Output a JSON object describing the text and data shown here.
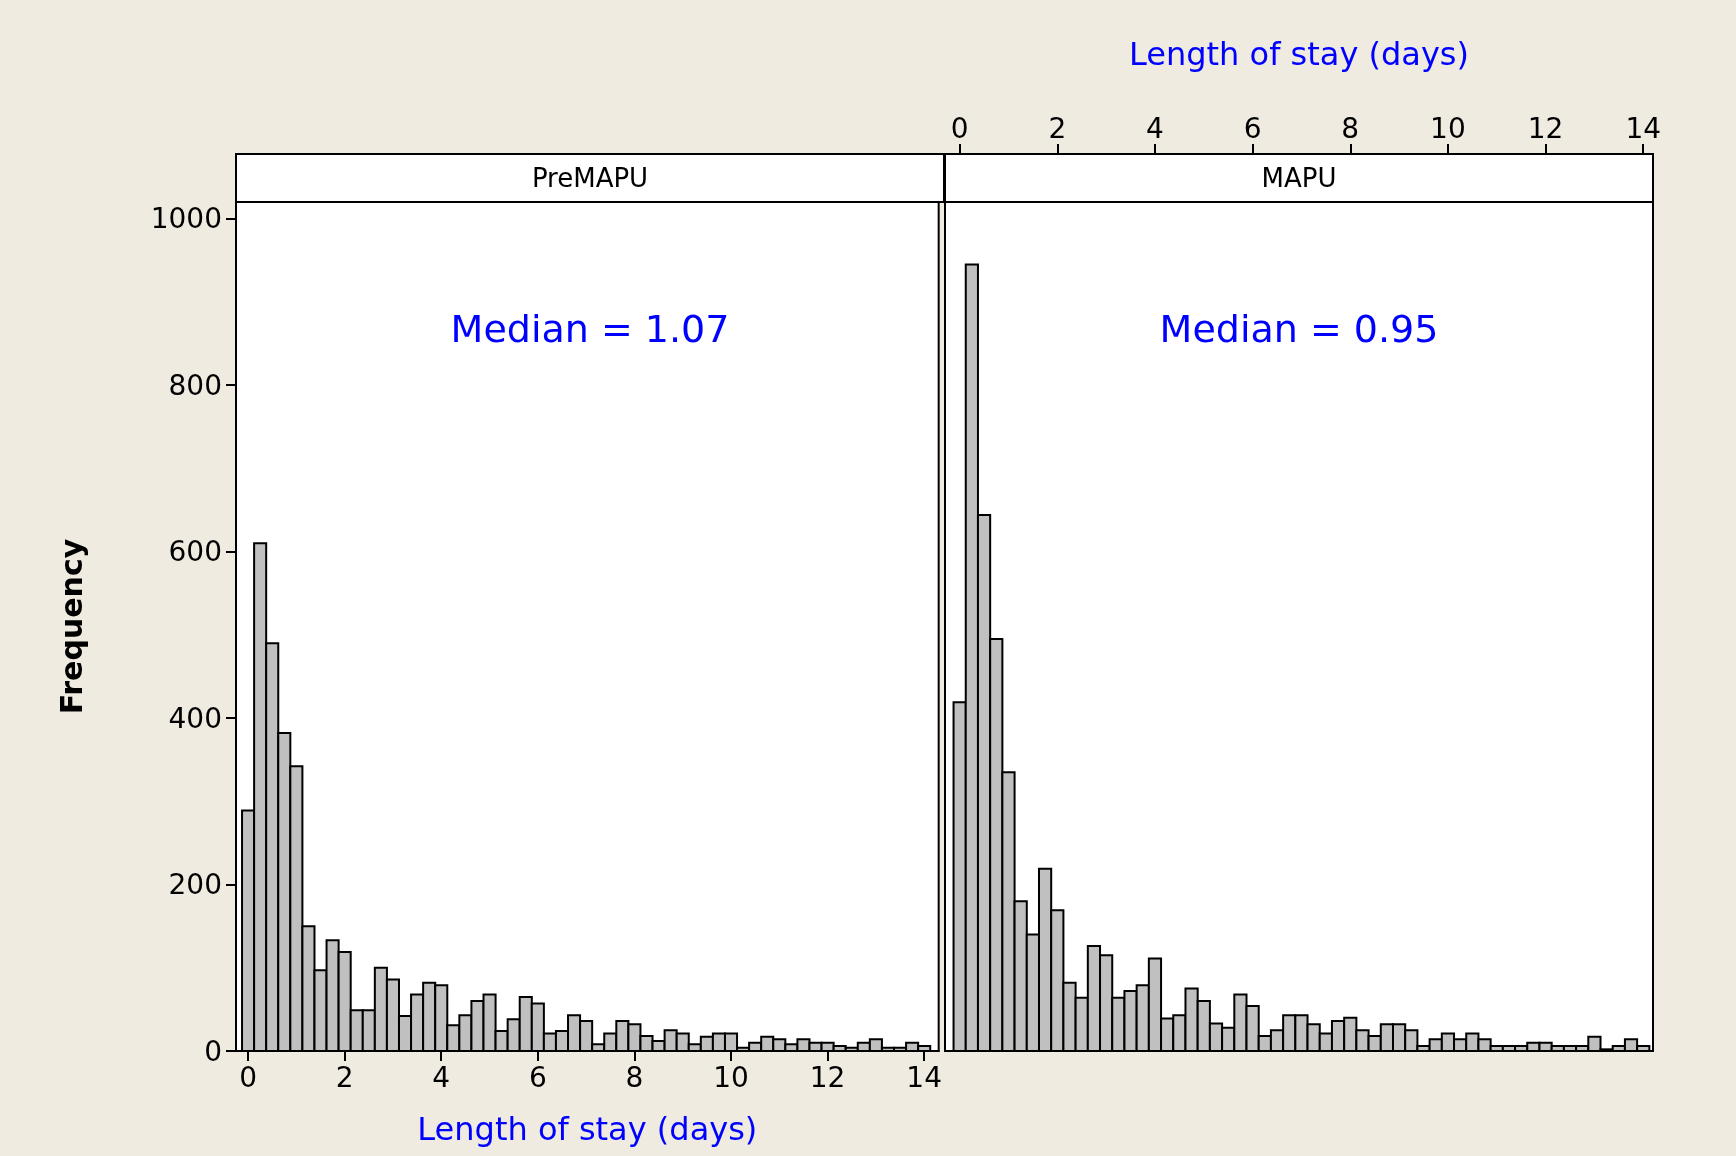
{
  "chart_data": [
    {
      "type": "histogram",
      "title": "PreMAPU",
      "xlabel": "Length of stay (days)",
      "ylabel": "Frequency",
      "annotations": [
        "Median = 1.07"
      ],
      "color": "#c0c0c0",
      "bins": [
        -0.125,
        0.125,
        0.375,
        0.625,
        0.875,
        1.125,
        1.375,
        1.625,
        1.875,
        2.125,
        2.375,
        2.625,
        2.875,
        3.125,
        3.375,
        3.625,
        3.875,
        4.125,
        4.375,
        4.625,
        4.875,
        5.125,
        5.375,
        5.625,
        5.875,
        6.125,
        6.375,
        6.625,
        6.875,
        7.125,
        7.375,
        7.625,
        7.875,
        8.125,
        8.375,
        8.625,
        8.875,
        9.125,
        9.375,
        9.625,
        9.875,
        10.125,
        10.375,
        10.625,
        10.875,
        11.125,
        11.375,
        11.625,
        11.875,
        12.125,
        12.375,
        12.625,
        12.875,
        13.125,
        13.375,
        13.625,
        13.875,
        14.125
      ],
      "values": [
        289,
        610,
        490,
        382,
        342,
        150,
        97,
        133,
        119,
        49,
        49,
        100,
        86,
        42,
        68,
        82,
        79,
        31,
        43,
        60,
        68,
        24,
        38,
        65,
        57,
        21,
        24,
        43,
        36,
        8,
        21,
        36,
        32,
        18,
        12,
        25,
        21,
        8,
        17,
        21,
        21,
        4,
        10,
        17,
        14,
        8,
        14,
        10,
        10,
        6,
        4,
        10,
        14,
        4,
        4,
        10,
        6
      ],
      "xlim": [
        -0.25,
        14.3
      ],
      "xticks": [
        0,
        2,
        4,
        6,
        8,
        10,
        12,
        14
      ],
      "ylim": [
        0,
        1020
      ],
      "yticks": [
        0,
        200,
        400,
        600,
        800,
        1000
      ]
    },
    {
      "type": "histogram",
      "title": "MAPU",
      "xlabel": "Length of stay (days)",
      "annotations": [
        "Median = 0.95"
      ],
      "color": "#c0c0c0",
      "bins": [
        -0.125,
        0.125,
        0.375,
        0.625,
        0.875,
        1.125,
        1.375,
        1.625,
        1.875,
        2.125,
        2.375,
        2.625,
        2.875,
        3.125,
        3.375,
        3.625,
        3.875,
        4.125,
        4.375,
        4.625,
        4.875,
        5.125,
        5.375,
        5.625,
        5.875,
        6.125,
        6.375,
        6.625,
        6.875,
        7.125,
        7.375,
        7.625,
        7.875,
        8.125,
        8.375,
        8.625,
        8.875,
        9.125,
        9.375,
        9.625,
        9.875,
        10.125,
        10.375,
        10.625,
        10.875,
        11.125,
        11.375,
        11.625,
        11.875,
        12.125,
        12.375,
        12.625,
        12.875,
        13.125,
        13.375,
        13.625,
        13.875,
        14.125
      ],
      "values": [
        419,
        945,
        644,
        495,
        335,
        180,
        140,
        219,
        169,
        82,
        64,
        126,
        115,
        64,
        72,
        79,
        111,
        39,
        43,
        75,
        60,
        33,
        28,
        68,
        54,
        18,
        25,
        43,
        43,
        32,
        21,
        36,
        40,
        25,
        18,
        32,
        32,
        25,
        6,
        14,
        21,
        14,
        21,
        14,
        6,
        6,
        6,
        10,
        10,
        6,
        6,
        6,
        17,
        2,
        6,
        14,
        6
      ],
      "xlim": [
        -0.3,
        14.2
      ],
      "xticks": [
        0,
        2,
        4,
        6,
        8,
        10,
        12,
        14
      ],
      "ylim": [
        0,
        1020
      ],
      "tick_labels": "x"
    }
  ]
}
